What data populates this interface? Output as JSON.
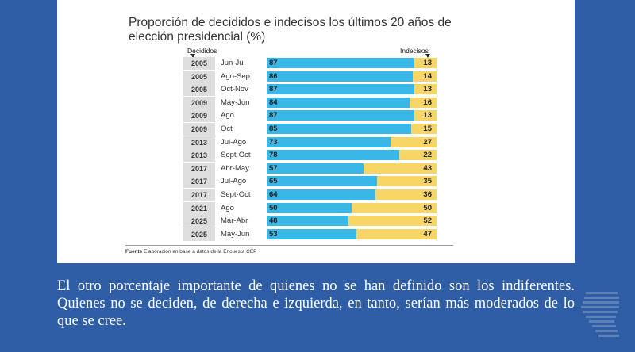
{
  "chart": {
    "title": "Proporción de decididos e indecisos los últimos 20 años de elección presidencial (%)",
    "header_decided": "Decididos",
    "header_undecided": "Indecisos",
    "source_label": "Fuente",
    "source_text": "Elaboración en base a datos de la Encuesta CEP"
  },
  "chart_data": {
    "type": "bar",
    "stacked": true,
    "orientation": "horizontal",
    "title": "Proporción de decididos e indecisos los últimos 20 años de elección presidencial (%)",
    "categories": [
      {
        "year": "2005",
        "period": "Jun-Jul"
      },
      {
        "year": "2005",
        "period": "Ago-Sep"
      },
      {
        "year": "2005",
        "period": "Oct-Nov"
      },
      {
        "year": "2009",
        "period": "May-Jun"
      },
      {
        "year": "2009",
        "period": "Ago"
      },
      {
        "year": "2009",
        "period": "Oct"
      },
      {
        "year": "2013",
        "period": "Jul-Ago"
      },
      {
        "year": "2013",
        "period": "Sept-Oct"
      },
      {
        "year": "2017",
        "period": "Abr-May"
      },
      {
        "year": "2017",
        "period": "Jul-Ago"
      },
      {
        "year": "2017",
        "period": "Sept-Oct"
      },
      {
        "year": "2021",
        "period": "Ago"
      },
      {
        "year": "2025",
        "period": "Mar-Abr"
      },
      {
        "year": "2025",
        "period": "May-Jun"
      }
    ],
    "series": [
      {
        "name": "Decididos",
        "color": "#39b8e8",
        "values": [
          87,
          86,
          87,
          84,
          87,
          85,
          73,
          78,
          57,
          65,
          64,
          50,
          48,
          53
        ]
      },
      {
        "name": "Indecisos",
        "color": "#f7d567",
        "values": [
          13,
          14,
          13,
          16,
          13,
          15,
          27,
          22,
          43,
          35,
          36,
          50,
          52,
          47
        ]
      }
    ],
    "xlim": [
      0,
      100
    ]
  },
  "caption": {
    "text": "El otro porcentaje importante de quienes no se han definido son los indiferentes. Quienes no se deciden, de derecha e izquierda, en tanto, serían más moderados de lo que se cree."
  },
  "logo": {
    "icon": "profile-head-logo-icon"
  }
}
